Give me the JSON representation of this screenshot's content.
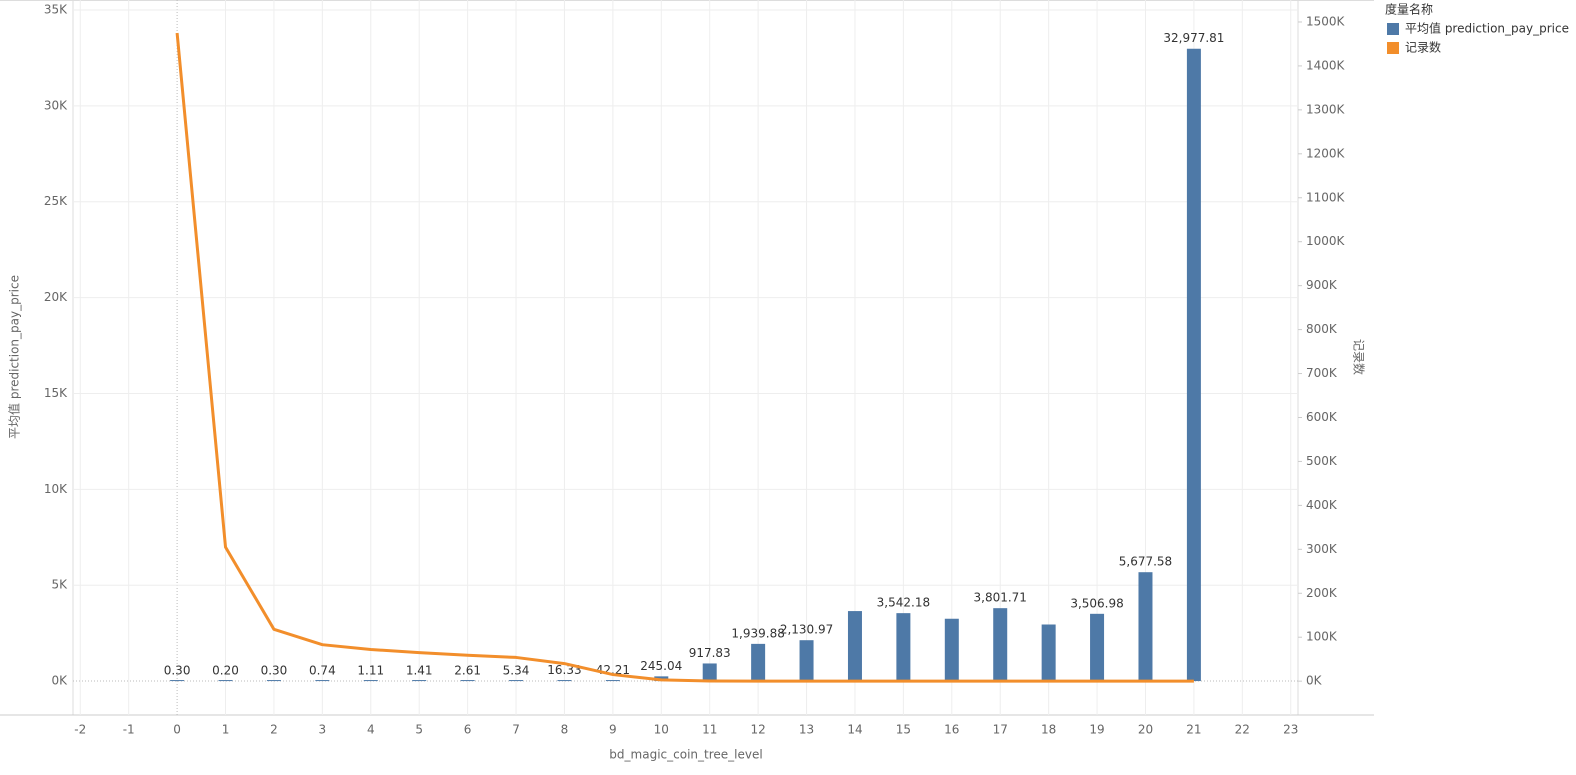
{
  "chart_data": {
    "type": "bar-line",
    "x_label": "bd_magic_coin_tree_level",
    "y_label": "平均值 prediction_pay_price",
    "y2_label": "记录数",
    "legend_title": "度量名称",
    "x": [
      0,
      1,
      2,
      3,
      4,
      5,
      6,
      7,
      8,
      9,
      10,
      11,
      12,
      13,
      14,
      15,
      16,
      17,
      18,
      19,
      20,
      21
    ],
    "xlim": [
      -2.15,
      23.15
    ],
    "xticks": [
      -2,
      -1,
      0,
      1,
      2,
      3,
      4,
      5,
      6,
      7,
      8,
      9,
      10,
      11,
      12,
      13,
      14,
      15,
      16,
      17,
      18,
      19,
      20,
      21,
      22,
      23
    ],
    "ylim": [
      -1770,
      35520
    ],
    "yticks": [
      {
        "value": 0,
        "label": "0K"
      },
      {
        "value": 5000,
        "label": "5K"
      },
      {
        "value": 10000,
        "label": "10K"
      },
      {
        "value": 15000,
        "label": "15K"
      },
      {
        "value": 20000,
        "label": "20K"
      },
      {
        "value": 25000,
        "label": "25K"
      },
      {
        "value": 30000,
        "label": "30K"
      },
      {
        "value": 35000,
        "label": "35K"
      }
    ],
    "y2lim": [
      -77000,
      1550000
    ],
    "y2ticks": [
      {
        "value": 0,
        "label": "0K"
      },
      {
        "value": 100000,
        "label": "100K"
      },
      {
        "value": 200000,
        "label": "200K"
      },
      {
        "value": 300000,
        "label": "300K"
      },
      {
        "value": 400000,
        "label": "400K"
      },
      {
        "value": 500000,
        "label": "500K"
      },
      {
        "value": 600000,
        "label": "600K"
      },
      {
        "value": 700000,
        "label": "700K"
      },
      {
        "value": 800000,
        "label": "800K"
      },
      {
        "value": 900000,
        "label": "900K"
      },
      {
        "value": 1000000,
        "label": "1000K"
      },
      {
        "value": 1100000,
        "label": "1100K"
      },
      {
        "value": 1200000,
        "label": "1200K"
      },
      {
        "value": 1300000,
        "label": "1300K"
      },
      {
        "value": 1400000,
        "label": "1400K"
      },
      {
        "value": 1500000,
        "label": "1500K"
      }
    ],
    "grid": true,
    "series": [
      {
        "name": "平均值 prediction_pay_price",
        "type": "bar",
        "color": "#4e79a7",
        "values": [
          0.3,
          0.2,
          0.3,
          0.74,
          1.11,
          1.41,
          2.61,
          5.34,
          16.33,
          42.21,
          245.04,
          917.83,
          1939.88,
          2130.97,
          3650,
          3542.18,
          3250,
          3801.71,
          2950,
          3506.98,
          5677.58,
          32977.81
        ],
        "value_labels": [
          "0.30",
          "0.20",
          "0.30",
          "0.74",
          "1.11",
          "1.41",
          "2.61",
          "5.34",
          "16.33",
          "42.21",
          "245.04",
          "917.83",
          "1,939.88",
          "2,130.97",
          null,
          "3,542.18",
          null,
          "3,801.71",
          null,
          "3,506.98",
          "5,677.58",
          "32,977.81"
        ]
      },
      {
        "name": "记录数",
        "type": "line",
        "axis": "y2",
        "color": "#f28e2b",
        "values": [
          1475000,
          305000,
          118000,
          83000,
          72000,
          65000,
          59000,
          54000,
          40000,
          15000,
          3000,
          500,
          200,
          100,
          80,
          60,
          40,
          30,
          20,
          10,
          10,
          5
        ]
      }
    ]
  }
}
